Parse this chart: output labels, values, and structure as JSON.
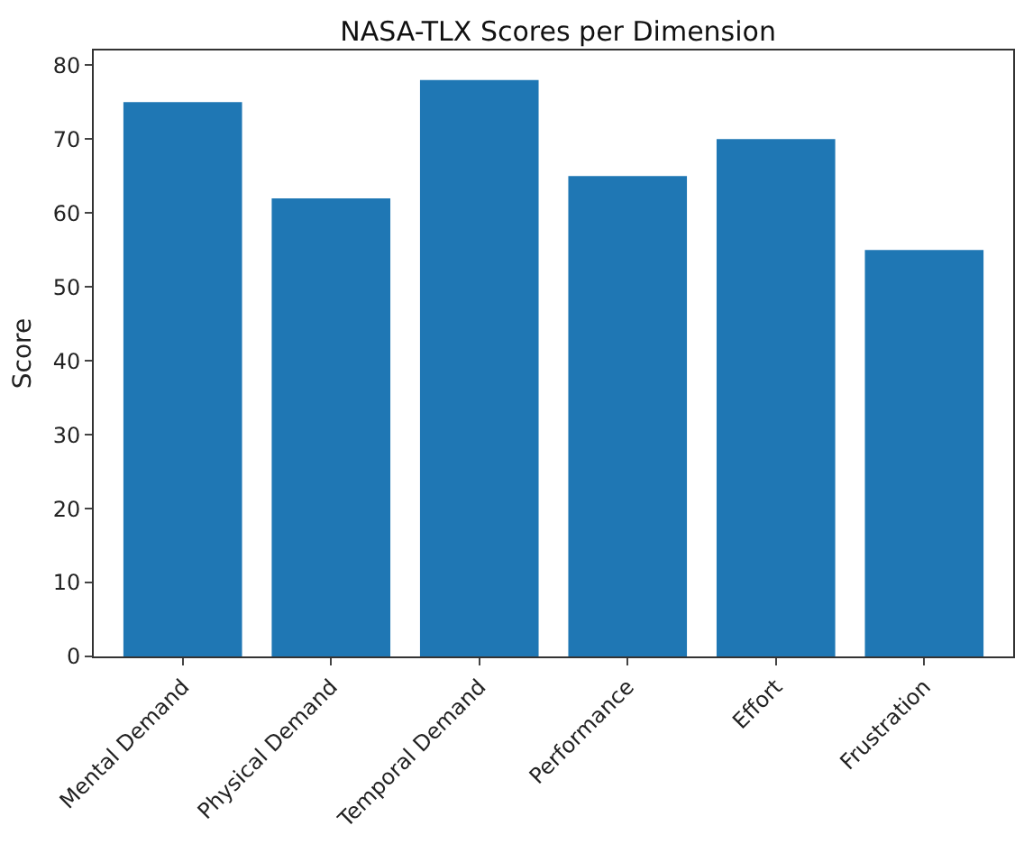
{
  "chart_data": {
    "type": "bar",
    "title": "NASA-TLX Scores per Dimension",
    "ylabel": "Score",
    "categories": [
      "Mental Demand",
      "Physical Demand",
      "Temporal Demand",
      "Performance",
      "Effort",
      "Frustration"
    ],
    "values": [
      75,
      62,
      78,
      65,
      70,
      55
    ],
    "color": "#1f77b4",
    "ylim": [
      0,
      82
    ],
    "yticks": [
      0,
      10,
      20,
      30,
      40,
      50,
      60,
      70,
      80
    ],
    "grid": false
  }
}
